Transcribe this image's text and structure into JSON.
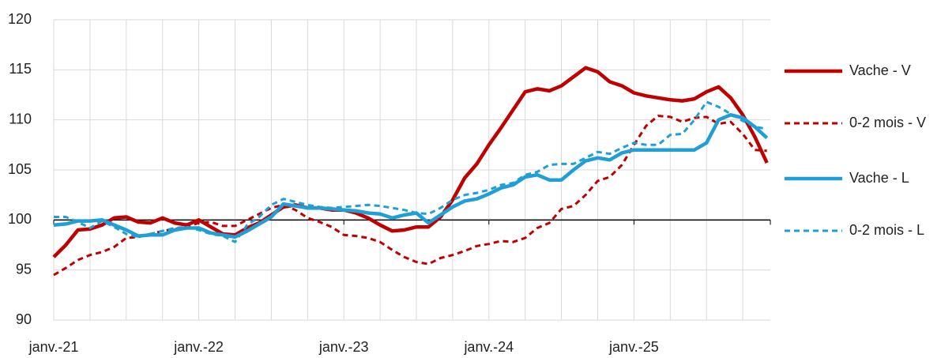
{
  "chart_data": {
    "type": "line",
    "categories": [
      "janv.-21",
      null,
      null,
      null,
      null,
      null,
      null,
      null,
      null,
      null,
      null,
      null,
      "janv.-22",
      null,
      null,
      null,
      null,
      null,
      null,
      null,
      null,
      null,
      null,
      null,
      "janv.-23",
      null,
      null,
      null,
      null,
      null,
      null,
      null,
      null,
      null,
      null,
      null,
      "janv.-24",
      null,
      null,
      null,
      null,
      null,
      null,
      null,
      null,
      null,
      null,
      null,
      "janv.-25",
      null,
      null,
      null,
      null,
      null,
      null,
      null,
      null,
      null,
      null,
      null
    ],
    "series": [
      {
        "name": "Vache - V",
        "color": "#c00000",
        "style": "solid",
        "values": [
          96.3,
          97.5,
          99,
          99.1,
          99.5,
          100.2,
          100.3,
          99.8,
          99.7,
          100.2,
          99.7,
          99.5,
          100,
          99.3,
          98.6,
          98.5,
          99.2,
          99.7,
          100.5,
          101.3,
          101.5,
          101.2,
          101.2,
          101,
          101,
          100.7,
          100.2,
          99.5,
          98.9,
          99,
          99.3,
          99.3,
          100.3,
          102,
          104.2,
          105.6,
          107.5,
          109.2,
          111,
          112.8,
          113.1,
          112.9,
          113.4,
          114.3,
          115.2,
          114.8,
          113.8,
          113.4,
          112.7,
          112.4,
          112.2,
          112,
          111.9,
          112.1,
          112.8,
          113.3,
          112.2,
          110.5,
          108.3,
          105.7
        ]
      },
      {
        "name": "0-2 mois - V",
        "color": "#c00000",
        "style": "dashed",
        "values": [
          94.5,
          95.2,
          96,
          96.5,
          96.8,
          97.3,
          98.2,
          98.3,
          98.6,
          98.9,
          99.1,
          99.3,
          99.7,
          99.8,
          99.4,
          99.4,
          100,
          100.6,
          101.2,
          101.5,
          101,
          100.2,
          99.8,
          99.3,
          98.5,
          98.4,
          98.2,
          97.8,
          97,
          96.3,
          95.8,
          95.6,
          96.2,
          96.5,
          96.9,
          97.4,
          97.6,
          97.9,
          97.8,
          98.2,
          99.2,
          99.7,
          101.1,
          101.4,
          102.5,
          103.9,
          104.3,
          105.5,
          107.5,
          109.4,
          110.4,
          110.3,
          109.8,
          110.2,
          110.3,
          109.6,
          109.8,
          108.6,
          107,
          106.9
        ]
      },
      {
        "name": "Vache - L",
        "color": "#1f9fd5",
        "style": "solid",
        "values": [
          99.5,
          99.6,
          99.9,
          99.9,
          100,
          99.5,
          99,
          98.4,
          98.5,
          98.5,
          99,
          99.2,
          99.2,
          98.7,
          98.5,
          98.3,
          98.9,
          99.6,
          100.3,
          101.6,
          101.4,
          101.2,
          101.2,
          101.1,
          101,
          100.9,
          100.7,
          100.6,
          100.2,
          100.5,
          100.7,
          99.7,
          100.5,
          101.3,
          101.9,
          102.1,
          102.6,
          103.2,
          103.5,
          104.3,
          104.5,
          104,
          104,
          105,
          105.9,
          106.2,
          106,
          106.7,
          107,
          107,
          107,
          107,
          107,
          107,
          107.7,
          110,
          110.5,
          110.2,
          109.3,
          108.2
        ]
      },
      {
        "name": "0-2 mois - L",
        "color": "#1f9fd5",
        "style": "dashed",
        "values": [
          100.3,
          100.3,
          99.8,
          99.2,
          99.9,
          99.3,
          98.6,
          98.3,
          98.6,
          98.9,
          99.2,
          99.3,
          99,
          98.6,
          98.4,
          97.8,
          99.5,
          100.3,
          101.5,
          102.1,
          101.8,
          101.5,
          101.3,
          101.2,
          101.3,
          101.4,
          101.5,
          101.4,
          101.2,
          101,
          100.7,
          100.6,
          101.2,
          102,
          102.5,
          102.7,
          103,
          103.5,
          103.7,
          104.5,
          104.8,
          105.5,
          105.6,
          105.6,
          106.2,
          106.8,
          106.6,
          107.2,
          107.7,
          107.5,
          107.5,
          108.5,
          108.6,
          110,
          111.8,
          111.3,
          110.6,
          109.9,
          109.3,
          109.1
        ]
      }
    ],
    "ylim": [
      90,
      120
    ],
    "yticks": [
      90,
      95,
      100,
      105,
      110,
      115,
      120
    ],
    "baseline": 100,
    "grid": true,
    "legend": "right"
  }
}
